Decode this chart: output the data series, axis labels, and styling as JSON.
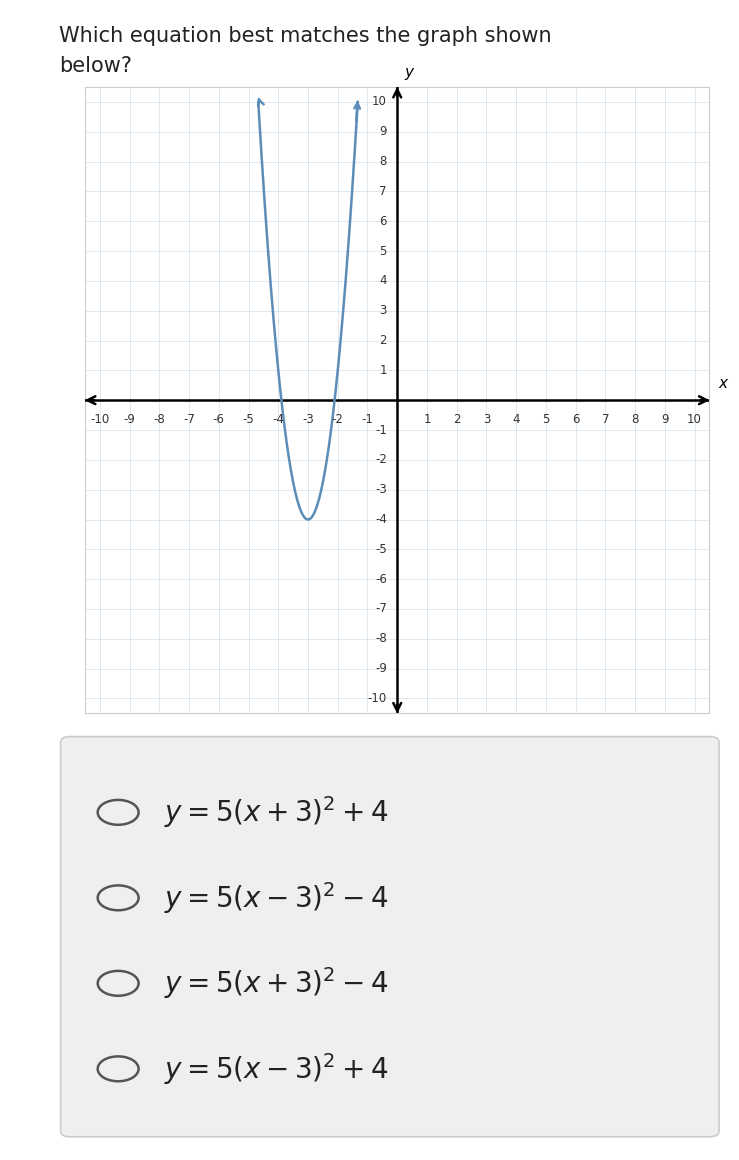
{
  "title_line1": "Which equation best matches the graph shown",
  "title_line2": "below?",
  "title_fontsize": 15,
  "background_color": "#ffffff",
  "graph_bg_color": "#ffffff",
  "grid_color": "#c8d8e8",
  "axis_color": "#000000",
  "curve_color": "#5b8db8",
  "curve_linewidth": 1.8,
  "xlim": [
    -10.5,
    10.5
  ],
  "ylim": [
    -10.5,
    10.5
  ],
  "xticks": [
    -10,
    -9,
    -8,
    -7,
    -6,
    -5,
    -4,
    -3,
    -2,
    -1,
    0,
    1,
    2,
    3,
    4,
    5,
    6,
    7,
    8,
    9,
    10
  ],
  "yticks": [
    -10,
    -9,
    -8,
    -7,
    -6,
    -5,
    -4,
    -3,
    -2,
    -1,
    0,
    1,
    2,
    3,
    4,
    5,
    6,
    7,
    8,
    9,
    10
  ],
  "vertex_x": -3,
  "vertex_y": -4,
  "a": 5,
  "choices_panel_bg": "#efefef",
  "choices_fontsize": 20,
  "tick_fontsize": 8.5,
  "border_color": "#cccccc"
}
